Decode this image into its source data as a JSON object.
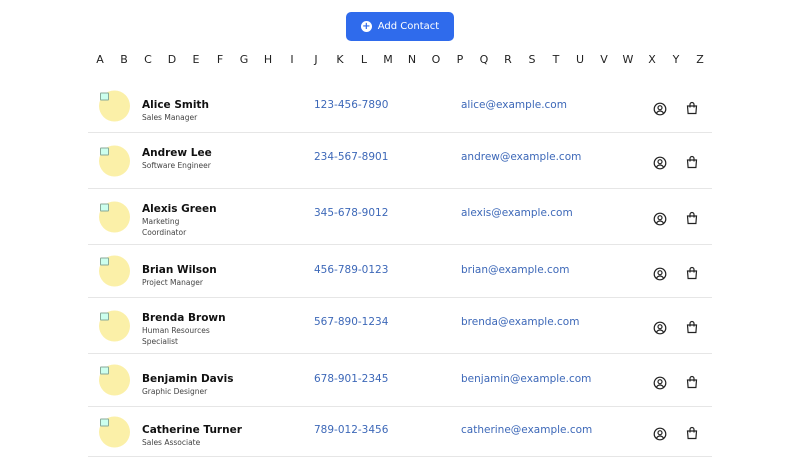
{
  "toolbar": {
    "add_label": "Add Contact",
    "add_icon": "plus-circle-icon",
    "accent": "#2f6bec"
  },
  "alphabet": [
    "A",
    "B",
    "C",
    "D",
    "E",
    "F",
    "G",
    "H",
    "I",
    "J",
    "K",
    "L",
    "M",
    "N",
    "O",
    "P",
    "Q",
    "R",
    "S",
    "T",
    "U",
    "V",
    "W",
    "X",
    "Y",
    "Z"
  ],
  "contacts": [
    {
      "name": "Alice Smith",
      "title": "Sales Manager",
      "phone": "123-456-7890",
      "email": "alice@example.com"
    },
    {
      "name": "Andrew Lee",
      "title": "Software Engineer",
      "phone": "234-567-8901",
      "email": "andrew@example.com"
    },
    {
      "name": "Alexis Green",
      "title": "Marketing Coordinator",
      "phone": "345-678-9012",
      "email": "alexis@example.com"
    },
    {
      "name": "Brian Wilson",
      "title": "Project Manager",
      "phone": "456-789-0123",
      "email": "brian@example.com"
    },
    {
      "name": "Brenda Brown",
      "title": "Human Resources Specialist",
      "phone": "567-890-1234",
      "email": "brenda@example.com"
    },
    {
      "name": "Benjamin Davis",
      "title": "Graphic Designer",
      "phone": "678-901-2345",
      "email": "benjamin@example.com"
    },
    {
      "name": "Catherine Turner",
      "title": "Sales Associate",
      "phone": "789-012-3456",
      "email": "catherine@example.com"
    }
  ],
  "row_icons": [
    "user-circle-icon",
    "shopping-bag-icon"
  ]
}
